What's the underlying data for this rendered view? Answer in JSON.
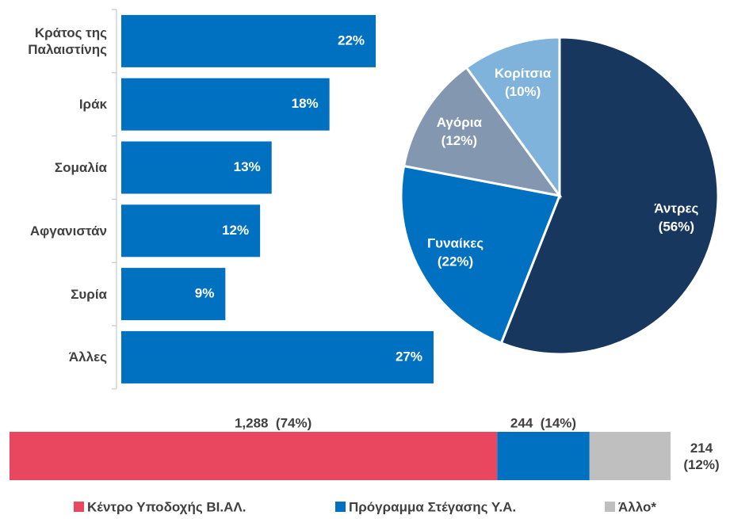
{
  "chart_data": [
    {
      "type": "hbar",
      "categories": [
        "Κράτος της Παλαιστίνης",
        "Ιράκ",
        "Σομαλία",
        "Αφγανιστάν",
        "Συρία",
        "Άλλες"
      ],
      "values": [
        22,
        18,
        13,
        12,
        9,
        27
      ],
      "value_labels": [
        "22%",
        "18%",
        "13%",
        "12%",
        "9%",
        "27%"
      ],
      "color": "#0070c0"
    },
    {
      "type": "pie",
      "categories": [
        "Άντρες",
        "Γυναίκες",
        "Αγόρια",
        "Κορίτσια"
      ],
      "values": [
        56,
        22,
        12,
        10
      ],
      "value_labels": [
        "(56%)",
        "(22%)",
        "(12%)",
        "(10%)"
      ],
      "colors": [
        "#17375e",
        "#0070c0",
        "#8497b0",
        "#7fb3dc"
      ]
    },
    {
      "type": "stacked-hbar",
      "series": [
        {
          "name": "Κέντρο Υποδοχής ΒΙ.ΑΛ.",
          "color": "#e9475f",
          "values": [
            1288
          ],
          "value_labels": [
            "1,288  (74%)"
          ]
        },
        {
          "name": "Πρόγραμμα Στέγασης Υ.Α.",
          "color": "#0070c0",
          "values": [
            244
          ],
          "value_labels": [
            "244  (14%)"
          ]
        },
        {
          "name": "Άλλο*",
          "color": "#bfbfbf",
          "values": [
            214
          ],
          "value_labels": [
            "214 (12%)"
          ]
        }
      ]
    }
  ]
}
